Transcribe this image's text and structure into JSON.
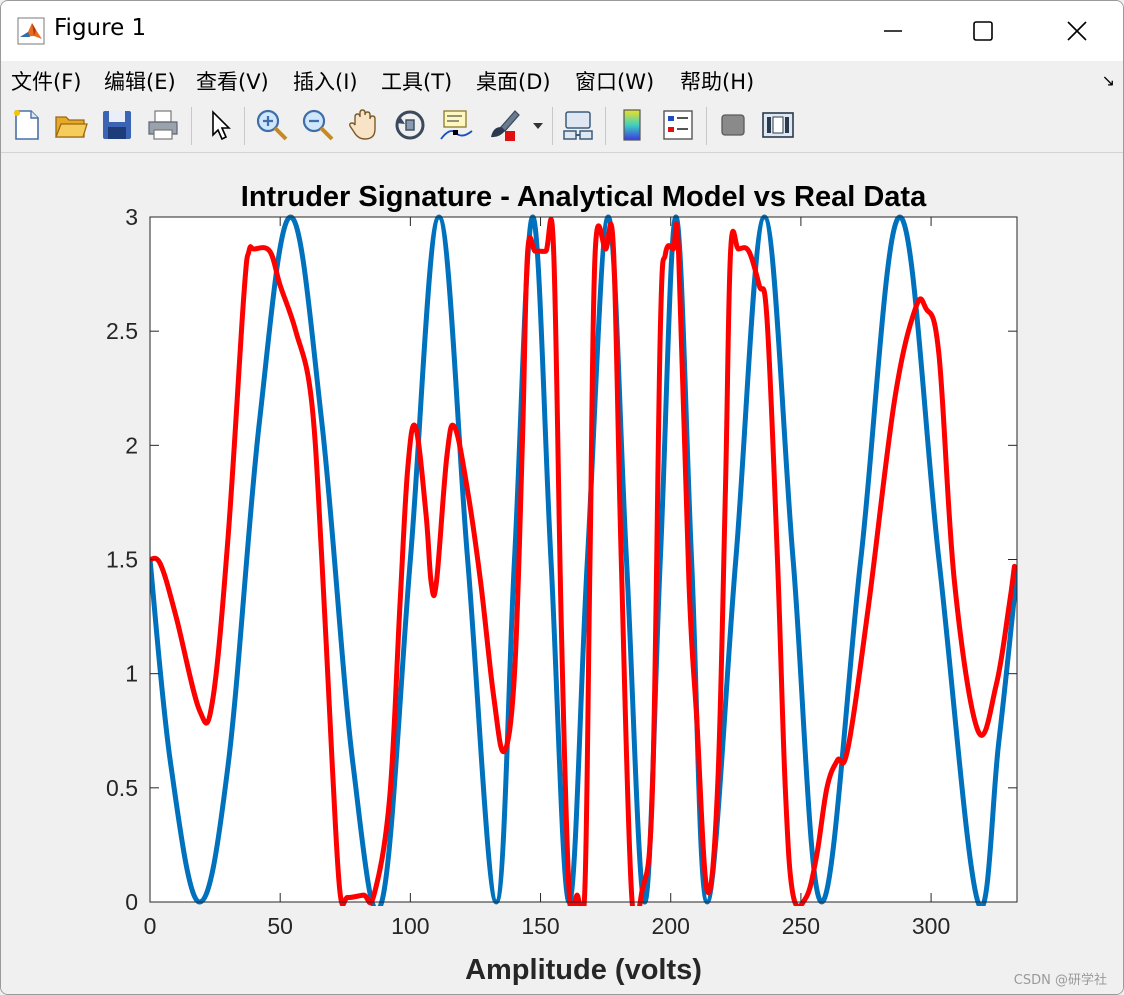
{
  "window": {
    "title": "Figure 1"
  },
  "menu": [
    {
      "label": "文件(F)",
      "name": "menu-file"
    },
    {
      "label": "编辑(E)",
      "name": "menu-edit"
    },
    {
      "label": "查看(V)",
      "name": "menu-view"
    },
    {
      "label": "插入(I)",
      "name": "menu-insert"
    },
    {
      "label": "工具(T)",
      "name": "menu-tools"
    },
    {
      "label": "桌面(D)",
      "name": "menu-desktop"
    },
    {
      "label": "窗口(W)",
      "name": "menu-window"
    },
    {
      "label": "帮助(H)",
      "name": "menu-help"
    }
  ],
  "toolbar": [
    "new-figure-icon",
    "open-file-icon",
    "save-icon",
    "print-icon",
    "pointer-icon",
    "zoom-in-icon",
    "zoom-out-icon",
    "pan-hand-icon",
    "rotate-3d-icon",
    "data-cursor-icon",
    "brush-icon",
    "brush-dropdown-icon",
    "link-plot-icon",
    "colorbar-icon",
    "legend-icon",
    "hide-plot-tools-icon",
    "show-plot-tools-icon"
  ],
  "watermark": "CSDN @研学社",
  "chart_data": {
    "type": "line",
    "title": "Intruder Signature - Analytical Model vs Real Data",
    "xlabel": "Amplitude (volts)",
    "ylabel": "",
    "xlim": [
      0,
      333
    ],
    "ylim": [
      0,
      3
    ],
    "xticks": [
      0,
      50,
      100,
      150,
      200,
      250,
      300
    ],
    "yticks": [
      0,
      0.5,
      1,
      1.5,
      2,
      2.5,
      3
    ],
    "xtick_labels": [
      "0",
      "50",
      "100",
      "150",
      "200",
      "250",
      "300"
    ],
    "ytick_labels": [
      "0",
      "0.5",
      "1",
      "1.5",
      "2",
      "2.5",
      "3"
    ],
    "grid": false,
    "series": [
      {
        "color": "#0072bd",
        "x": [
          0,
          8,
          19,
          30,
          42,
          54,
          66,
          78,
          89,
          100,
          111,
          122,
          133,
          140,
          147,
          154,
          161,
          168,
          176,
          183,
          190,
          196,
          202,
          208,
          214,
          225,
          236,
          247,
          258,
          273,
          288,
          303,
          318,
          326,
          333
        ],
        "y": [
          1.5,
          0.6,
          0,
          0.6,
          2.1,
          3.0,
          2.1,
          0.6,
          0,
          1.5,
          3.0,
          1.5,
          0,
          1.5,
          3.0,
          1.5,
          0,
          1.5,
          3.0,
          1.5,
          0,
          1.5,
          3.0,
          1.5,
          0,
          1.5,
          3.0,
          1.5,
          0,
          1.5,
          3.0,
          1.5,
          0,
          0.7,
          1.45
        ]
      },
      {
        "color": "#ff0000",
        "x": [
          0,
          4,
          10,
          19,
          24,
          30,
          36,
          38,
          40,
          46,
          50,
          56,
          62,
          66,
          70,
          73,
          76,
          82,
          86,
          92,
          96,
          99,
          102,
          106,
          108,
          110,
          114,
          117,
          122,
          127,
          132,
          136,
          140,
          143,
          145,
          148,
          152,
          155,
          158,
          161,
          164,
          167,
          169,
          171,
          175,
          178,
          181,
          185,
          189,
          193,
          196,
          198,
          201,
          203,
          207,
          210,
          214,
          218,
          221,
          223,
          226,
          230,
          234,
          237,
          241,
          244,
          247,
          252,
          256,
          260,
          264,
          268,
          276,
          286,
          294,
          298,
          303,
          309,
          318,
          325,
          330,
          332
        ],
        "y": [
          1.5,
          1.48,
          1.25,
          0.84,
          0.88,
          1.6,
          2.65,
          2.85,
          2.86,
          2.85,
          2.7,
          2.5,
          2.2,
          1.5,
          0.6,
          0.04,
          0.02,
          0.03,
          0.03,
          0.45,
          1.3,
          1.9,
          2.08,
          1.7,
          1.4,
          1.4,
          1.95,
          2.08,
          1.8,
          1.4,
          0.9,
          0.66,
          1.0,
          2.0,
          2.84,
          2.85,
          2.85,
          2.86,
          1.2,
          0.04,
          0.03,
          0.05,
          1.5,
          2.85,
          2.86,
          2.86,
          1.5,
          0.03,
          0.05,
          0.5,
          2.5,
          2.84,
          2.86,
          2.85,
          1.4,
          0.8,
          0.05,
          0.5,
          1.8,
          2.85,
          2.86,
          2.85,
          2.7,
          2.55,
          1.5,
          0.5,
          0.03,
          0.02,
          0.2,
          0.5,
          0.62,
          0.67,
          1.3,
          2.2,
          2.6,
          2.6,
          2.4,
          1.4,
          0.75,
          0.95,
          1.3,
          1.47
        ]
      }
    ]
  }
}
